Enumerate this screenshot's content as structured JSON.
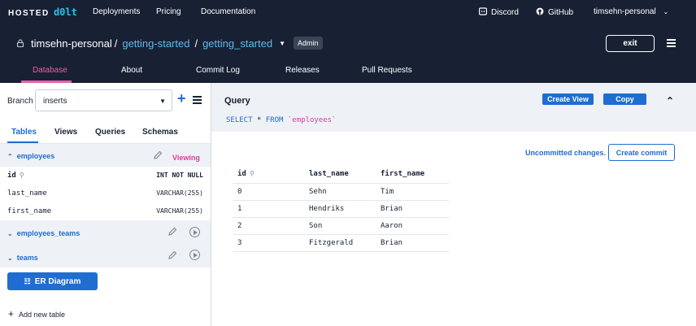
{
  "topnav": {
    "logo_text": "HOSTED",
    "logo_mark": "d0lt",
    "links": [
      "Deployments",
      "Pricing",
      "Documentation"
    ],
    "discord": "Discord",
    "github": "GitHub",
    "user": "timsehn-personal"
  },
  "repo": {
    "owner": "timsehn-personal",
    "separator": "/",
    "database": "getting-started",
    "branch_db": "getting_started",
    "role_badge": "Admin",
    "exit_label": "exit",
    "tabs": [
      "Database",
      "About",
      "Commit Log",
      "Releases",
      "Pull Requests"
    ],
    "active_tab": "Database"
  },
  "left": {
    "branch_label": "Branch",
    "branch_value": "inserts",
    "tabs": [
      "Tables",
      "Views",
      "Queries",
      "Schemas"
    ],
    "active_tab": "Tables",
    "tables": [
      {
        "name": "employees",
        "status": "Viewing",
        "columns": [
          {
            "name": "id",
            "type": "INT NOT NULL",
            "primary_key": true
          },
          {
            "name": "last_name",
            "type": "VARCHAR(255)"
          },
          {
            "name": "first_name",
            "type": "VARCHAR(255)"
          }
        ]
      },
      {
        "name": "employees_teams"
      },
      {
        "name": "teams"
      }
    ],
    "er_button": "ER Diagram",
    "add_table": "Add new table"
  },
  "query": {
    "title": "Query",
    "create_view": "Create View",
    "copy": "Copy",
    "sql_select": "SELECT",
    "sql_star": "*",
    "sql_from": "FROM",
    "sql_table": "`employees`"
  },
  "results": {
    "uncommitted": "Uncommitted changes.",
    "create_commit": "Create commit",
    "headers": [
      "id",
      "last_name",
      "first_name"
    ],
    "rows": [
      [
        "0",
        "Sehn",
        "Tim"
      ],
      [
        "1",
        "Hendriks",
        "Brian"
      ],
      [
        "2",
        "Son",
        "Aaron"
      ],
      [
        "3",
        "Fitzgerald",
        "Brian"
      ]
    ]
  },
  "colors": {
    "nav_bg": "#182134",
    "accent_blue": "#1f6dd1",
    "accent_pink": "#ea5ea8",
    "link_blue": "#5fb8ef",
    "panel_bg": "#eef1f5"
  }
}
